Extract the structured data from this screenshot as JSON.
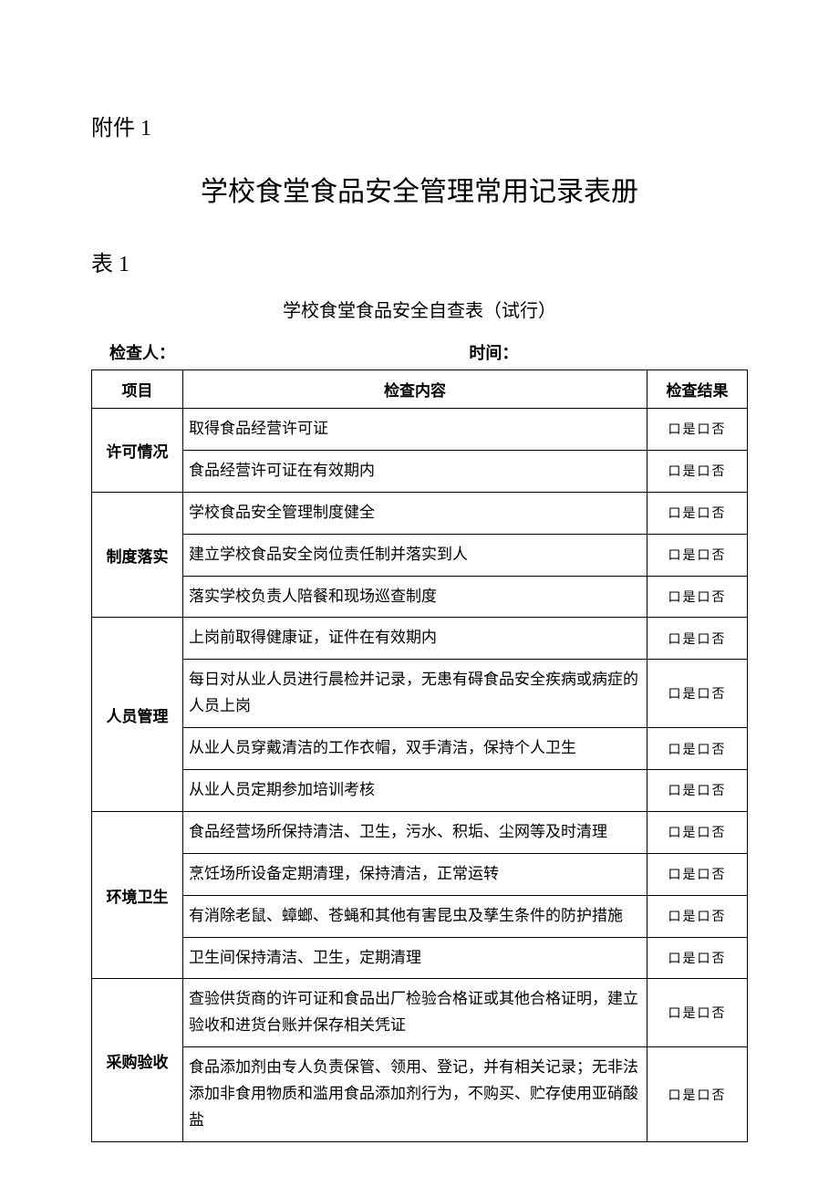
{
  "attachment_label": "附件 1",
  "main_title": "学校食堂食品安全管理常用记录表册",
  "table_label": "表 1",
  "sub_title": "学校食堂食品安全自查表（试行）",
  "meta": {
    "inspector_label": "检查人：",
    "time_label": "时间："
  },
  "headers": {
    "project": "项目",
    "content": "检查内容",
    "result": "检查结果"
  },
  "yes_no": "口是口否",
  "sections": [
    {
      "category": "许可情况",
      "items": [
        "取得食品经营许可证",
        "食品经营许可证在有效期内"
      ]
    },
    {
      "category": "制度落实",
      "items": [
        "学校食品安全管理制度健全",
        "建立学校食品安全岗位责任制并落实到人",
        "落实学校负责人陪餐和现场巡查制度"
      ]
    },
    {
      "category": "人员管理",
      "items": [
        "上岗前取得健康证，证件在有效期内",
        "每日对从业人员进行晨检并记录，无患有碍食品安全疾病或病症的人员上岗",
        "从业人员穿戴清洁的工作衣帽，双手清洁，保持个人卫生",
        "从业人员定期参加培训考核"
      ]
    },
    {
      "category": "环境卫生",
      "items": [
        "食品经营场所保持清洁、卫生，污水、积垢、尘网等及时清理",
        "烹饪场所设备定期清理，保持清洁，正常运转",
        "有消除老鼠、蟑螂、苍蝇和其他有害昆虫及孳生条件的防护措施",
        "卫生间保持清洁、卫生，定期清理"
      ]
    },
    {
      "category": "采购验收",
      "items": [
        "查验供货商的许可证和食品出厂检验合格证或其他合格证明，建立验收和进货台账并保存相关凭证",
        "食品添加剂由专人负责保管、领用、登记，并有相关记录；无非法添加非食用物质和滥用食品添加剂行为，不购买、贮存使用亚硝酸盐"
      ]
    }
  ]
}
